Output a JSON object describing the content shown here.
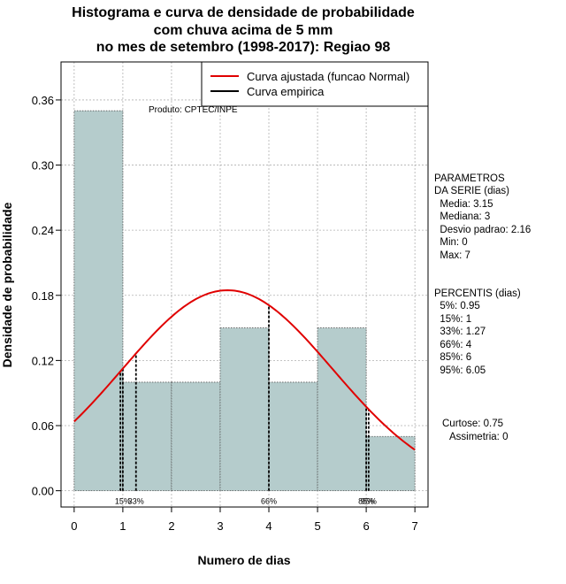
{
  "chart_data": {
    "type": "bar",
    "title_lines": [
      "Histograma e curva de densidade de probabilidade",
      "com chuva acima de 5 mm",
      "no mes de setembro (1998-2017): Regiao 98"
    ],
    "xlabel": "Numero de dias",
    "ylabel": "Densidade de probabilidade",
    "xlim": [
      -0.27,
      7.27
    ],
    "ylim": [
      -0.015,
      0.395
    ],
    "x_ticks": [
      0,
      1,
      2,
      3,
      4,
      5,
      6,
      7
    ],
    "y_ticks": [
      0.0,
      0.06,
      0.12,
      0.18,
      0.24,
      0.3,
      0.36
    ],
    "y_tick_labels": [
      "0.00",
      "0.06",
      "0.12",
      "0.18",
      "0.24",
      "0.30",
      "0.36"
    ],
    "grid": true,
    "histogram": {
      "bins": [
        [
          0,
          1
        ],
        [
          1,
          2
        ],
        [
          2,
          3
        ],
        [
          3,
          4
        ],
        [
          4,
          5
        ],
        [
          5,
          6
        ],
        [
          6,
          7
        ]
      ],
      "values": [
        0.35,
        0.1,
        0.1,
        0.15,
        0.1,
        0.15,
        0.05
      ],
      "color": "#b5cccc"
    },
    "series": [
      {
        "name": "Curva ajustada (funcao Normal)",
        "color": "#e00000",
        "mean": 3.15,
        "sd": 2.16,
        "x_range": [
          0,
          7
        ]
      },
      {
        "name": "Curva empirica",
        "color": "#000000"
      }
    ],
    "percentile_marks": [
      {
        "x": 0.95,
        "label": ""
      },
      {
        "x": 1.0,
        "label": "15%"
      },
      {
        "x": 1.27,
        "label": "33%"
      },
      {
        "x": 4.0,
        "label": "66%"
      },
      {
        "x": 6.0,
        "label": "85%"
      },
      {
        "x": 6.05,
        "label": "95%"
      }
    ],
    "annotation": "Produto: CPTEC/INPE",
    "legend_position": "top-right"
  },
  "side_panel": {
    "parametros": [
      "PARAMETROS",
      "DA SERIE (dias)",
      "  Media: 3.15",
      "  Mediana: 3",
      "  Desvio padrao: 2.16",
      "  Min: 0",
      "  Max: 7"
    ],
    "percentis": [
      "PERCENTIS (dias)",
      "  5%: 0.95",
      "  15%: 1",
      "  33%: 1.27",
      "  66%: 4",
      "  85%: 6",
      "  95%: 6.05"
    ],
    "curtose": "Curtose: 0.75",
    "assimetria": "Assimetria: 0"
  },
  "colors": {
    "bar_fill": "#b5cccc",
    "normal_curve": "#e00000",
    "grid": "#b0b0b0"
  }
}
